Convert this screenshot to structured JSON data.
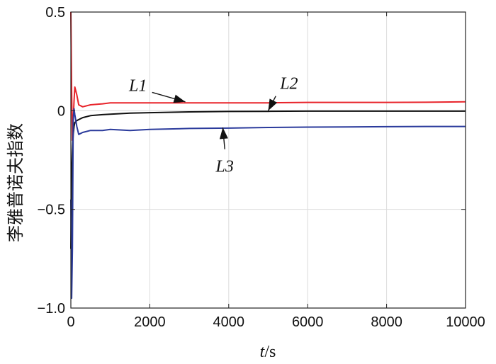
{
  "chart_data": {
    "type": "line",
    "title": "",
    "xlabel": {
      "italic": "t",
      "rest": "/s"
    },
    "ylabel": "李雅普诺夫指数",
    "xlim": [
      0,
      10000
    ],
    "ylim": [
      -1.0,
      0.5
    ],
    "grid": true,
    "x_ticks": [
      "0",
      "2000",
      "4000",
      "6000",
      "8000",
      "10000"
    ],
    "y_ticks": [
      "0.5",
      "0",
      "−0.5",
      "−1.0"
    ],
    "series": [
      {
        "name": "L1",
        "color": "#e8232a",
        "x": [
          0,
          20,
          40,
          60,
          80,
          100,
          150,
          200,
          300,
          500,
          800,
          1000,
          1500,
          2000,
          3000,
          4000,
          5000,
          6000,
          7000,
          8000,
          9000,
          10000
        ],
        "y": [
          0.5,
          0.1,
          -0.15,
          -0.05,
          0.05,
          0.12,
          0.08,
          0.03,
          0.02,
          0.03,
          0.035,
          0.04,
          0.04,
          0.04,
          0.04,
          0.04,
          0.04,
          0.042,
          0.042,
          0.042,
          0.043,
          0.045
        ]
      },
      {
        "name": "L2",
        "color": "#111111",
        "x": [
          0,
          20,
          40,
          60,
          80,
          100,
          150,
          200,
          300,
          500,
          800,
          1000,
          1500,
          2000,
          3000,
          4000,
          5000,
          6000,
          7000,
          8000,
          9000,
          10000
        ],
        "y": [
          -0.7,
          -0.3,
          -0.2,
          -0.12,
          -0.08,
          -0.06,
          -0.05,
          -0.045,
          -0.035,
          -0.025,
          -0.02,
          -0.018,
          -0.012,
          -0.01,
          -0.006,
          -0.004,
          -0.003,
          -0.002,
          -0.002,
          -0.002,
          -0.002,
          -0.002
        ]
      },
      {
        "name": "L3",
        "color": "#2b3b9c",
        "x": [
          0,
          20,
          40,
          60,
          80,
          100,
          150,
          200,
          300,
          500,
          800,
          1000,
          1500,
          2000,
          3000,
          4000,
          5000,
          6000,
          7000,
          8000,
          9000,
          10000
        ],
        "y": [
          -0.45,
          -0.95,
          -0.7,
          -0.05,
          0.01,
          -0.02,
          -0.08,
          -0.12,
          -0.11,
          -0.1,
          -0.1,
          -0.095,
          -0.1,
          -0.095,
          -0.09,
          -0.088,
          -0.085,
          -0.083,
          -0.082,
          -0.081,
          -0.08,
          -0.08
        ]
      }
    ],
    "annotations": [
      {
        "label": "L1",
        "series": "L1"
      },
      {
        "label": "L2",
        "series": "L2"
      },
      {
        "label": "L3",
        "series": "L3"
      }
    ]
  }
}
